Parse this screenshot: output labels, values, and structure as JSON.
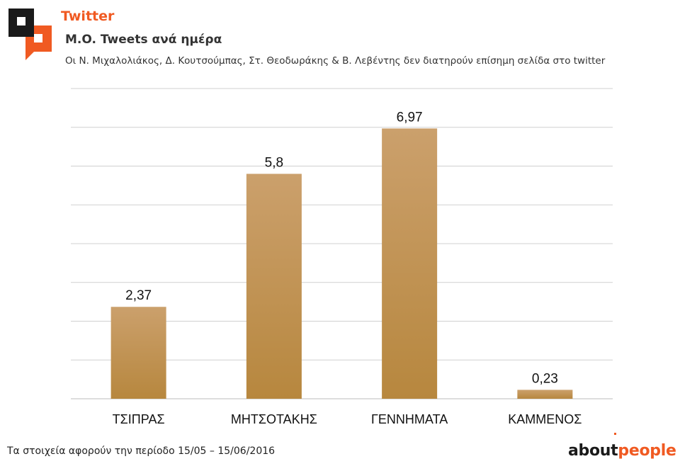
{
  "header": {
    "section": "Twitter",
    "title": "M.O. Tweets ανά ημέρα",
    "subtitle": "Οι Ν. Μιχαλολιάκος, Δ. Κουτσούμπας, Στ. Θεοδωράκης & Β. Λεβέντης δεν διατηρούν επίσημη σελίδα στο twitter"
  },
  "footer": {
    "note": "Τα στοιχεία αφορούν την περίοδο 15/05 – 15/06/2016",
    "brand_dark": "about",
    "brand_accent": "people"
  },
  "colors": {
    "accent": "#f05a22",
    "bar_top": "#cba06c",
    "bar_bottom": "#b7873e",
    "grid": "#d0d0d0"
  },
  "chart_data": {
    "type": "bar",
    "title": "M.O. Tweets ανά ημέρα",
    "categories": [
      "ΤΣΙΠΡΑΣ",
      "ΜΗΤΣΟΤΑΚΗΣ",
      "ΓΕΝΝΗΜΑΤΑ",
      "ΚΑΜΜΕΝΟΣ"
    ],
    "values": [
      2.37,
      5.8,
      6.97,
      0.23
    ],
    "data_labels": [
      "2,37",
      "5,8",
      "6,97",
      "0,23"
    ],
    "xlabel": "",
    "ylabel": "",
    "ylim": [
      0,
      8
    ],
    "grid_step": 1,
    "grid": true,
    "y_tick_labels_shown": false
  }
}
